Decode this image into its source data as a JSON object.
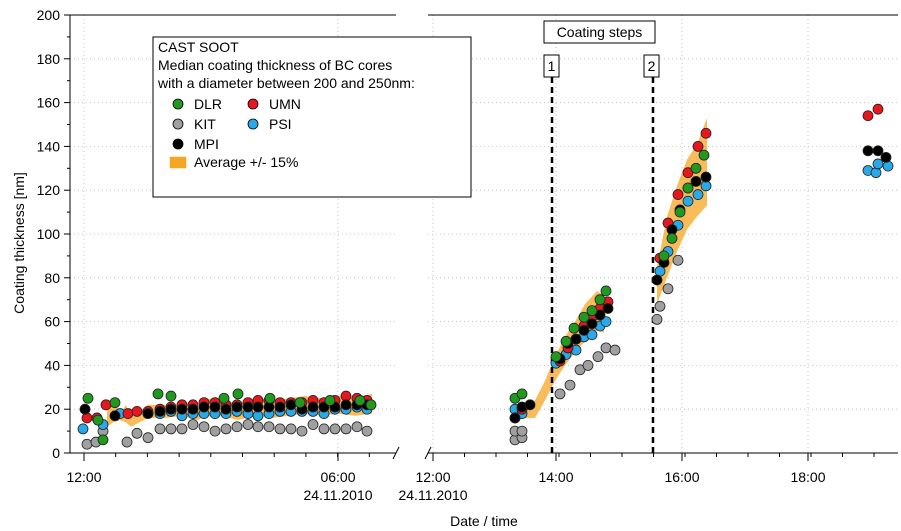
{
  "chart_data": {
    "type": "scatter",
    "ylabel": "Coating thickness [nm]",
    "xlabel": "Date / time",
    "ylim": [
      0,
      200
    ],
    "y_ticks": [
      "0",
      "20",
      "40",
      "60",
      "80",
      "100",
      "120",
      "140",
      "160",
      "180",
      "200"
    ],
    "grid": "horizontal dotted + vertical dotted at labeled ticks",
    "broken_x_axis": true,
    "x_ticks_left": [
      "12:00",
      "06:00"
    ],
    "x_ticks_right": [
      "12:00",
      "14:00",
      "16:00",
      "18:00"
    ],
    "x_date_left": "24.11.2010",
    "x_date_right": "24.11.2010",
    "legend": {
      "title_lines": [
        "CAST SOOT",
        "Median coating thickness of BC cores",
        "with a diameter between 200 and 250nm:"
      ],
      "entries": [
        {
          "label": "DLR",
          "color": "#1f9a1f"
        },
        {
          "label": "UMN",
          "color": "#e8171d"
        },
        {
          "label": "KIT",
          "color": "#a0a0a0"
        },
        {
          "label": "PSI",
          "color": "#2aa9e8"
        },
        {
          "label": "MPI",
          "color": "#000000"
        },
        {
          "label": "Average +/- 15%",
          "color": "#f5a623"
        }
      ]
    },
    "annotations": {
      "box_label": "Coating steps",
      "steps": [
        "1",
        "2"
      ]
    },
    "colors": {
      "DLR": "#1f9a1f",
      "UMN": "#e8171d",
      "KIT": "#a0a0a0",
      "PSI": "#2aa9e8",
      "MPI": "#000000",
      "band": "#f5a623"
    },
    "band_points": [
      [
        20,
        23,
        12
      ],
      [
        21,
        25,
        14
      ],
      [
        22,
        18,
        15
      ],
      [
        24,
        22,
        14
      ],
      [
        26,
        16,
        12
      ],
      [
        30,
        23,
        16
      ],
      [
        34,
        23,
        16
      ],
      [
        38,
        23,
        17
      ],
      [
        42,
        22,
        15
      ],
      [
        44,
        25,
        17
      ],
      [
        48,
        24,
        17
      ],
      [
        52,
        23,
        15
      ],
      [
        56,
        25,
        17
      ],
      [
        60,
        24,
        16
      ],
      [
        64,
        25,
        17
      ],
      [
        68,
        26,
        18
      ],
      [
        72,
        25,
        17
      ],
      [
        76,
        26,
        18
      ],
      [
        80,
        25,
        17
      ],
      [
        84,
        26,
        17
      ],
      [
        88,
        27,
        18
      ],
      [
        92,
        26,
        18
      ],
      [
        96,
        28,
        19
      ],
      [
        100,
        26,
        18
      ],
      [
        104,
        27,
        19
      ],
      [
        108,
        28,
        19
      ]
    ],
    "band_right": [
      [
        817,
        22,
        18
      ],
      [
        830,
        25,
        18
      ],
      [
        840,
        36,
        26
      ],
      [
        850,
        48,
        36
      ],
      [
        860,
        58,
        44
      ],
      [
        870,
        64,
        49
      ],
      [
        880,
        71,
        54
      ],
      [
        885,
        74,
        56
      ]
    ],
    "band_right2": [
      [
        915,
        86,
        66
      ],
      [
        925,
        106,
        80
      ],
      [
        935,
        122,
        92
      ],
      [
        945,
        134,
        102
      ],
      [
        955,
        142,
        108
      ],
      [
        965,
        148,
        112
      ],
      [
        975,
        153,
        113
      ]
    ]
  }
}
